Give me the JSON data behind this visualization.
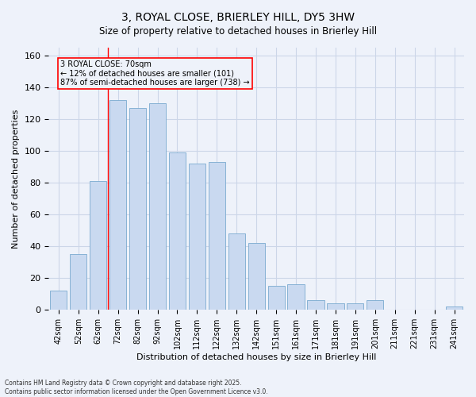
{
  "title1": "3, ROYAL CLOSE, BRIERLEY HILL, DY5 3HW",
  "title2": "Size of property relative to detached houses in Brierley Hill",
  "xlabel": "Distribution of detached houses by size in Brierley Hill",
  "ylabel": "Number of detached properties",
  "bar_color": "#c9d9f0",
  "bar_edge_color": "#7aaad0",
  "categories": [
    "42sqm",
    "52sqm",
    "62sqm",
    "72sqm",
    "82sqm",
    "92sqm",
    "102sqm",
    "112sqm",
    "122sqm",
    "132sqm",
    "142sqm",
    "151sqm",
    "161sqm",
    "171sqm",
    "181sqm",
    "191sqm",
    "201sqm",
    "211sqm",
    "221sqm",
    "231sqm",
    "241sqm"
  ],
  "values": [
    12,
    35,
    81,
    132,
    127,
    130,
    99,
    92,
    93,
    48,
    42,
    15,
    16,
    6,
    4,
    4,
    6,
    0,
    0,
    0,
    2
  ],
  "ylim": [
    0,
    165
  ],
  "yticks": [
    0,
    20,
    40,
    60,
    80,
    100,
    120,
    140,
    160
  ],
  "red_line_x": 2.5,
  "annotation_text": "3 ROYAL CLOSE: 70sqm\n← 12% of detached houses are smaller (101)\n87% of semi-detached houses are larger (738) →",
  "footnote": "Contains HM Land Registry data © Crown copyright and database right 2025.\nContains public sector information licensed under the Open Government Licence v3.0.",
  "grid_color": "#ccd6e8",
  "background_color": "#eef2fa"
}
